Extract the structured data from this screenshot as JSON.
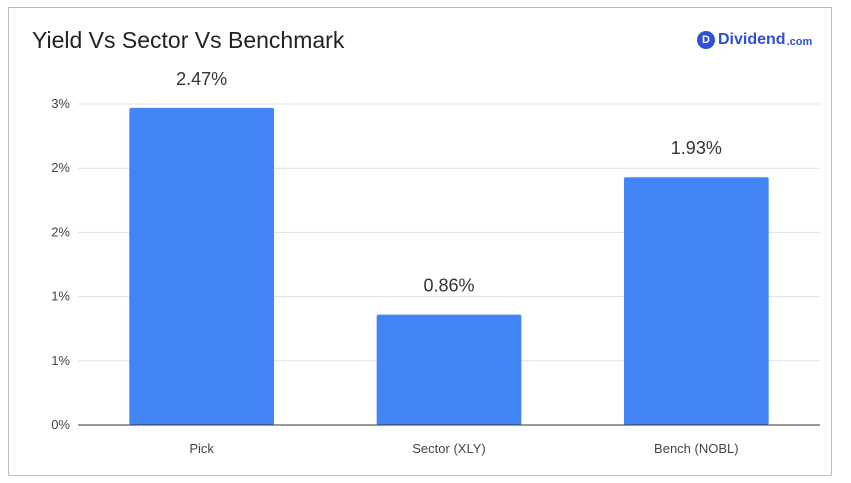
{
  "header": {
    "title": "Yield Vs Sector Vs Benchmark",
    "logo_name": "Dividend",
    "logo_tld": ".com",
    "logo_badge": "D"
  },
  "chart_data": {
    "type": "bar",
    "title": "Yield Vs Sector Vs Benchmark",
    "categories": [
      "Pick",
      "Sector (XLY)",
      "Bench (NOBL)"
    ],
    "values": [
      2.47,
      0.86,
      1.93
    ],
    "value_display": [
      2.47,
      0.86,
      1.93
    ],
    "data_labels": [
      "2.47%",
      "0.86%",
      "1.93%"
    ],
    "tick_labels": [
      "0%",
      "1%",
      "1%",
      "2%",
      "2%",
      "3%"
    ],
    "tick_values": [
      0,
      0.5,
      1.0,
      1.5,
      2.0,
      2.5
    ],
    "ylim": [
      0,
      2.5
    ],
    "xlabel": "",
    "ylabel": "",
    "grid": true,
    "bar_color": "#4285f4"
  },
  "colors": {
    "bar": "#4285f4",
    "brand": "#2e4fd6",
    "grid": "#e0e0e0",
    "axis": "#333333"
  }
}
